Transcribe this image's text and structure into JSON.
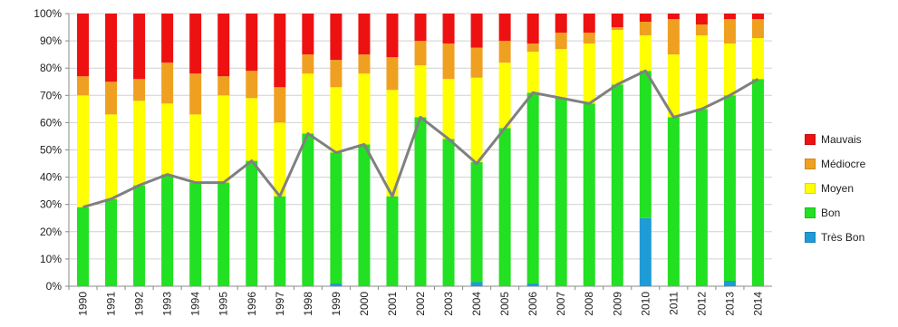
{
  "chart_data": {
    "type": "bar",
    "stacked": true,
    "categories": [
      "1990",
      "1991",
      "1992",
      "1993",
      "1994",
      "1995",
      "1996",
      "1997",
      "1998",
      "1999",
      "2000",
      "2001",
      "2002",
      "2003",
      "2004",
      "2005",
      "2006",
      "2007",
      "2008",
      "2009",
      "2010",
      "2011",
      "2012",
      "2013",
      "2014"
    ],
    "series": [
      {
        "name": "Très Bon",
        "color": "#1f9bd6",
        "values": [
          0,
          0,
          0,
          0,
          0,
          0,
          0,
          0,
          0,
          1,
          0,
          0,
          0,
          0,
          1.5,
          0,
          1,
          0,
          0,
          0,
          25,
          0,
          0,
          2,
          0
        ]
      },
      {
        "name": "Bon",
        "color": "#22e022",
        "values": [
          29,
          32,
          37,
          41,
          38,
          38,
          46,
          33,
          56,
          48,
          52,
          33,
          62,
          54,
          44,
          58,
          70,
          69,
          67,
          74,
          54,
          62,
          65,
          68,
          76
        ]
      },
      {
        "name": "Moyen",
        "color": "#ffff00",
        "values": [
          41,
          31,
          31,
          26,
          25,
          32,
          23,
          27,
          22,
          24,
          26,
          39,
          19,
          22,
          31,
          24,
          15,
          18,
          22,
          20,
          13,
          23,
          27,
          19,
          15
        ]
      },
      {
        "name": "Médiocre",
        "color": "#f0a020",
        "values": [
          7,
          12,
          8,
          15,
          15,
          7,
          10,
          13,
          7,
          10,
          7,
          12,
          9,
          13,
          11,
          8,
          3,
          6,
          4,
          1,
          5,
          13,
          4,
          9,
          7
        ]
      },
      {
        "name": "Mauvais",
        "color": "#ee1111",
        "values": [
          23,
          25,
          24,
          18,
          22,
          23,
          21,
          27,
          15,
          17,
          15,
          16,
          10,
          11,
          12.5,
          10,
          11,
          7,
          7,
          5,
          3,
          2,
          4,
          2,
          2
        ]
      }
    ],
    "line": {
      "color": "#808080",
      "values": [
        29,
        32,
        37,
        41,
        38,
        38,
        46,
        33,
        56,
        49,
        52,
        33,
        62,
        54,
        45,
        58,
        71,
        69,
        67,
        74,
        79,
        62,
        65,
        70,
        76
      ]
    },
    "ylim": [
      0,
      100
    ],
    "yticks": [
      "0%",
      "10%",
      "20%",
      "30%",
      "40%",
      "50%",
      "60%",
      "70%",
      "80%",
      "90%",
      "100%"
    ],
    "grid": true,
    "legend_position": "right",
    "legend_order": [
      "Mauvais",
      "Médiocre",
      "Moyen",
      "Bon",
      "Très Bon"
    ]
  }
}
